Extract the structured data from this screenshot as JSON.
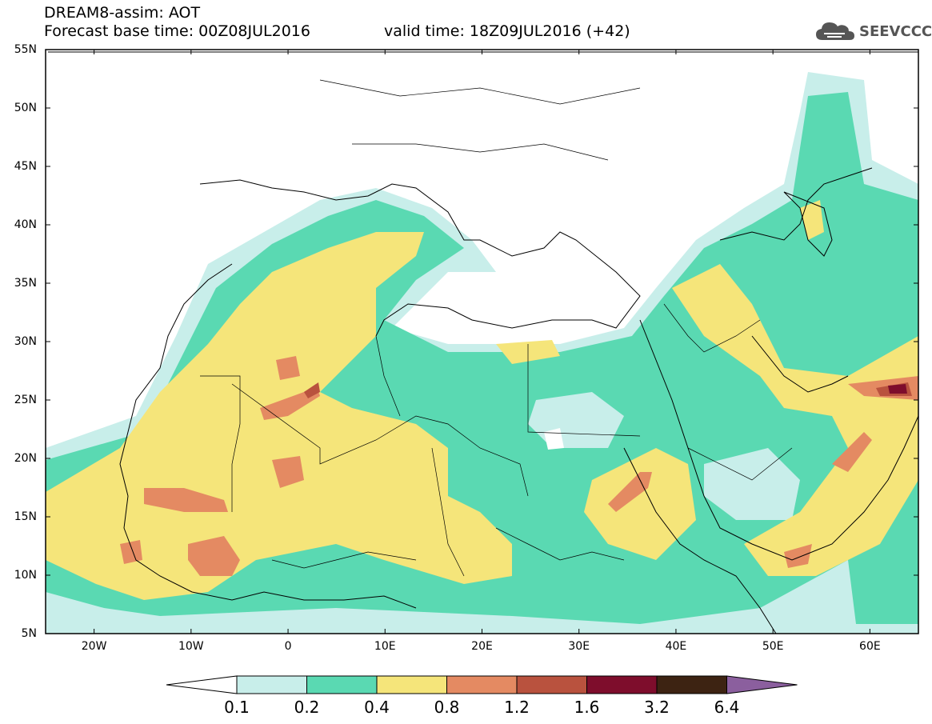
{
  "header": {
    "title_line1": "DREAM8-assim: AOT",
    "title_line2": "Forecast base time: 00Z08JUL2016",
    "valid_time": "valid time: 18Z09JUL2016 (+42)",
    "logo_text": "SEEVCCC",
    "logo_icon": "cloud-icon"
  },
  "map": {
    "lat_labels": [
      "55N",
      "50N",
      "45N",
      "40N",
      "35N",
      "30N",
      "25N",
      "20N",
      "15N",
      "10N",
      "5N"
    ],
    "lon_labels": [
      "20W",
      "10W",
      "0",
      "10E",
      "20E",
      "30E",
      "40E",
      "50E",
      "60E"
    ],
    "lon_range": [
      -25,
      65
    ],
    "lat_range": [
      5,
      55
    ],
    "field": "AOT"
  },
  "colorbar": {
    "labels": [
      "0.1",
      "0.2",
      "0.4",
      "0.8",
      "1.2",
      "1.6",
      "3.2",
      "6.4"
    ],
    "colors": [
      "#ffffff",
      "#c8eeea",
      "#5ad9b2",
      "#f5e57a",
      "#e48a62",
      "#b9523e",
      "#7e0d2c",
      "#3d2312",
      "#8b5f9e"
    ]
  }
}
